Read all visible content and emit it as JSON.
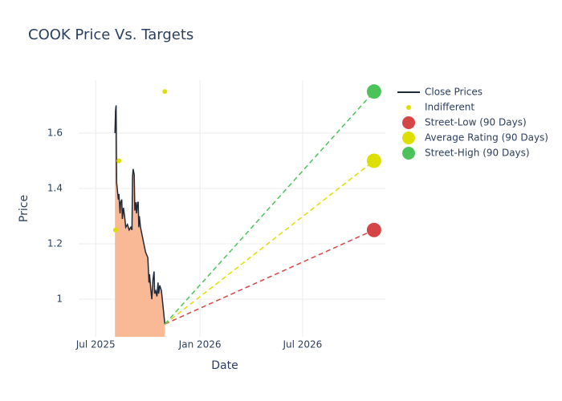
{
  "chart_data": {
    "type": "line",
    "title": "COOK Price Vs. Targets",
    "x_label": "Date",
    "y_label": "Price",
    "xlim": [
      -30,
      511
    ],
    "ylim": [
      0.864,
      1.791
    ],
    "xticks": [
      {
        "value": 0,
        "label": "Jul 2025"
      },
      {
        "value": 184,
        "label": "Jan 2026"
      },
      {
        "value": 365,
        "label": "Jul 2026"
      }
    ],
    "yticks": [
      1,
      1.2,
      1.4,
      1.6
    ],
    "grid": true,
    "legend": "right",
    "series": [
      {
        "name": "Close Prices",
        "mode": "lines",
        "color": "#1f2a3a",
        "fill_color": "#f9b996",
        "x": [
          34,
          35,
          36,
          37,
          38,
          40,
          41,
          43,
          44,
          46,
          47,
          49,
          51,
          53,
          56,
          59,
          62,
          64,
          65,
          66,
          68,
          69,
          71,
          72,
          74,
          75,
          76,
          77,
          79,
          83,
          88,
          92,
          94,
          95,
          97,
          99,
          101,
          103,
          104,
          106,
          108,
          110,
          111,
          113,
          116,
          118,
          120,
          122
        ],
        "values": [
          1.6,
          1.68,
          1.7,
          1.42,
          1.4,
          1.36,
          1.38,
          1.31,
          1.35,
          1.36,
          1.29,
          1.33,
          1.3,
          1.26,
          1.27,
          1.25,
          1.26,
          1.25,
          1.44,
          1.47,
          1.45,
          1.32,
          1.35,
          1.31,
          1.35,
          1.35,
          1.26,
          1.3,
          1.26,
          1.22,
          1.17,
          1.15,
          1.06,
          1.09,
          1.04,
          1.0,
          1.07,
          1.1,
          1.02,
          1.03,
          1.01,
          1.06,
          1.02,
          1.05,
          1.03,
          0.99,
          0.95,
          0.91
        ]
      },
      {
        "name": "Indifferent",
        "mode": "markers",
        "color": "#dede00",
        "marker_size": 3,
        "x": [
          35,
          41,
          122
        ],
        "values": [
          1.25,
          1.5,
          1.75
        ]
      },
      {
        "name": "Street-Low (90 Days)",
        "mode": "target",
        "color": "#d64545",
        "marker_size": 9,
        "x": [
          491
        ],
        "values": [
          1.25
        ]
      },
      {
        "name": "Average Rating (90 Days)",
        "mode": "target",
        "color": "#dede00",
        "marker_size": 9,
        "x": [
          491
        ],
        "values": [
          1.5
        ]
      },
      {
        "name": "Street-High (90 Days)",
        "mode": "target",
        "color": "#4cc35a",
        "marker_size": 9,
        "x": [
          491
        ],
        "values": [
          1.75
        ]
      }
    ]
  }
}
